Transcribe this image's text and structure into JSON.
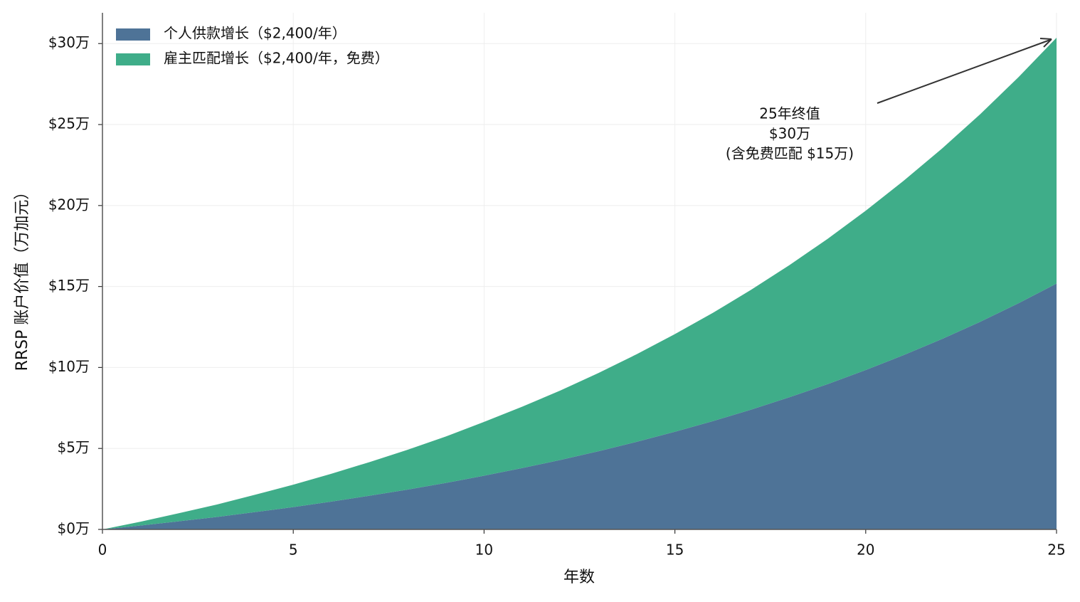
{
  "chart_data": {
    "type": "stacked_area",
    "y_label": "RRSP 账户价值（万加元）",
    "x_label": "年数",
    "x": [
      0,
      1,
      2,
      3,
      4,
      5,
      6,
      7,
      8,
      9,
      10,
      11,
      12,
      13,
      14,
      15,
      16,
      17,
      18,
      19,
      20,
      21,
      22,
      23,
      24,
      25
    ],
    "series": [
      {
        "name": "个人供款增长（$2,400/年）",
        "color": "#4e7397",
        "values": [
          0,
          0.24,
          0.5,
          0.77,
          1.07,
          1.38,
          1.72,
          2.08,
          2.46,
          2.87,
          3.32,
          3.79,
          4.29,
          4.83,
          5.41,
          6.03,
          6.69,
          7.4,
          8.16,
          8.97,
          9.84,
          10.77,
          11.76,
          12.82,
          13.96,
          15.18
        ]
      },
      {
        "name": "雇主匹配增长（$2,400/年，免费）",
        "color": "#3fad89",
        "values": [
          0,
          0.24,
          0.5,
          0.77,
          1.07,
          1.38,
          1.72,
          2.08,
          2.46,
          2.87,
          3.32,
          3.79,
          4.29,
          4.83,
          5.41,
          6.03,
          6.69,
          7.4,
          8.16,
          8.97,
          9.84,
          10.77,
          11.76,
          12.82,
          13.96,
          15.18
        ]
      }
    ],
    "xlim": [
      0,
      25
    ],
    "xticks": [
      0,
      5,
      10,
      15,
      20,
      25
    ],
    "ylim": [
      0,
      31.9
    ],
    "yticks": [
      {
        "value": 0,
        "label": "$0万"
      },
      {
        "value": 5,
        "label": "$5万"
      },
      {
        "value": 10,
        "label": "$10万"
      },
      {
        "value": 15,
        "label": "$15万"
      },
      {
        "value": 20,
        "label": "$20万"
      },
      {
        "value": 25,
        "label": "$25万"
      },
      {
        "value": 30,
        "label": "$30万"
      }
    ],
    "grid": true,
    "legend": "upper left",
    "annotation": [
      "25年终值",
      "$30万",
      "(含免费匹配 $15万)"
    ]
  }
}
